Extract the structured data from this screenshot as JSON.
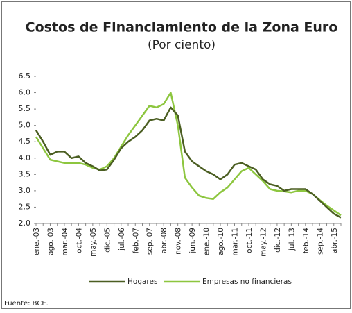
{
  "chart_data": {
    "type": "line",
    "title": "Costos de Financiamiento de la Zona Euro",
    "subtitle": "(Por ciento)",
    "source": "Fuente: BCE.",
    "categories": [
      "ene.-03",
      null,
      "ago.-03",
      null,
      "mar.-04",
      null,
      "oct.-04",
      null,
      "may.-05",
      null,
      "dic.-05",
      null,
      "jul.-06",
      null,
      "feb.-07",
      null,
      "sep.-07",
      null,
      "abr.-08",
      null,
      "nov.-08",
      null,
      "jun.-09",
      null,
      "ene.-10",
      null,
      "ago.-10",
      null,
      "mar.-11",
      null,
      "oct.-11",
      null,
      "may.-12",
      null,
      "dic.-12",
      null,
      "jul.-13",
      null,
      "feb.-14",
      null,
      "sep.-14",
      null,
      "abr.-15",
      null
    ],
    "series": [
      {
        "name": "Hogares",
        "color": "#4b5e22",
        "values": [
          4.85,
          4.5,
          4.1,
          4.2,
          4.2,
          4.0,
          4.05,
          3.85,
          3.75,
          3.62,
          3.65,
          3.95,
          4.3,
          4.5,
          4.65,
          4.85,
          5.15,
          5.2,
          5.15,
          5.55,
          5.3,
          4.2,
          3.9,
          3.75,
          3.6,
          3.5,
          3.35,
          3.5,
          3.8,
          3.85,
          3.75,
          3.65,
          3.35,
          3.2,
          3.15,
          3.0,
          3.05,
          3.05,
          3.05,
          2.9,
          2.7,
          2.5,
          2.3,
          2.18
        ]
      },
      {
        "name": "Empresas no financieras",
        "color": "#8dc63f",
        "values": [
          4.65,
          4.3,
          3.95,
          3.9,
          3.85,
          3.85,
          3.85,
          3.8,
          3.7,
          3.65,
          3.75,
          4.0,
          4.35,
          4.7,
          5.0,
          5.3,
          5.6,
          5.55,
          5.65,
          6.0,
          5.0,
          3.4,
          3.1,
          2.85,
          2.78,
          2.75,
          2.95,
          3.1,
          3.35,
          3.6,
          3.7,
          3.5,
          3.3,
          3.05,
          3.0,
          2.98,
          2.95,
          3.0,
          3.0,
          2.9,
          2.72,
          2.55,
          2.4,
          2.25
        ]
      }
    ],
    "ylim": [
      2.0,
      6.5
    ],
    "yticks": [
      {
        "value": 2,
        "label": "2.0"
      },
      2.5,
      {
        "value": 3,
        "label": "3.0"
      },
      3.5,
      {
        "value": 4,
        "label": "4.0"
      },
      4.5,
      {
        "value": 5,
        "label": "5.0"
      },
      5.5,
      {
        "value": 6,
        "label": "6.0"
      },
      6.5
    ],
    "legend": "bottom"
  }
}
